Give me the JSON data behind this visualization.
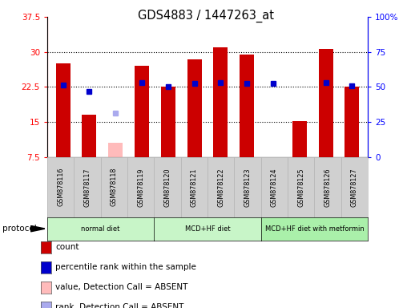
{
  "title": "GDS4883 / 1447263_at",
  "samples": [
    "GSM878116",
    "GSM878117",
    "GSM878118",
    "GSM878119",
    "GSM878120",
    "GSM878121",
    "GSM878122",
    "GSM878123",
    "GSM878124",
    "GSM878125",
    "GSM878126",
    "GSM878127"
  ],
  "count_values": [
    27.5,
    16.5,
    null,
    27.0,
    22.5,
    28.5,
    31.0,
    29.5,
    null,
    15.2,
    30.7,
    22.5
  ],
  "absent_count_values": [
    null,
    null,
    10.5,
    null,
    null,
    null,
    null,
    null,
    null,
    null,
    null,
    null
  ],
  "percentile_values": [
    23.0,
    21.5,
    null,
    23.5,
    22.5,
    23.3,
    23.5,
    23.3,
    23.3,
    null,
    23.5,
    22.7
  ],
  "absent_percentile_values": [
    null,
    null,
    17.0,
    null,
    null,
    null,
    null,
    null,
    null,
    null,
    null,
    null
  ],
  "ylim_left": [
    7.5,
    37.5
  ],
  "ylim_right": [
    0,
    100
  ],
  "yticks_left": [
    7.5,
    15.0,
    22.5,
    30.0,
    37.5
  ],
  "yticks_left_labels": [
    "7.5",
    "15",
    "22.5",
    "30",
    "37.5"
  ],
  "yticks_right": [
    0,
    25,
    50,
    75,
    100
  ],
  "yticks_right_labels": [
    "0",
    "25",
    "50",
    "75",
    "100%"
  ],
  "groups": [
    {
      "label": "normal diet",
      "start": 0,
      "end": 4,
      "color": "#c8f5c8"
    },
    {
      "label": "MCD+HF diet",
      "start": 4,
      "end": 8,
      "color": "#c8f5c8"
    },
    {
      "label": "MCD+HF diet with metformin",
      "start": 8,
      "end": 12,
      "color": "#aaf0aa"
    }
  ],
  "bar_width": 0.55,
  "bar_color_present": "#cc0000",
  "bar_color_absent": "#ffbbbb",
  "dot_color_present": "#0000cc",
  "dot_color_absent": "#aaaaee",
  "background_color": "#ffffff",
  "legend_items": [
    {
      "label": "count",
      "color": "#cc0000"
    },
    {
      "label": "percentile rank within the sample",
      "color": "#0000cc"
    },
    {
      "label": "value, Detection Call = ABSENT",
      "color": "#ffbbbb"
    },
    {
      "label": "rank, Detection Call = ABSENT",
      "color": "#aaaaee"
    }
  ]
}
